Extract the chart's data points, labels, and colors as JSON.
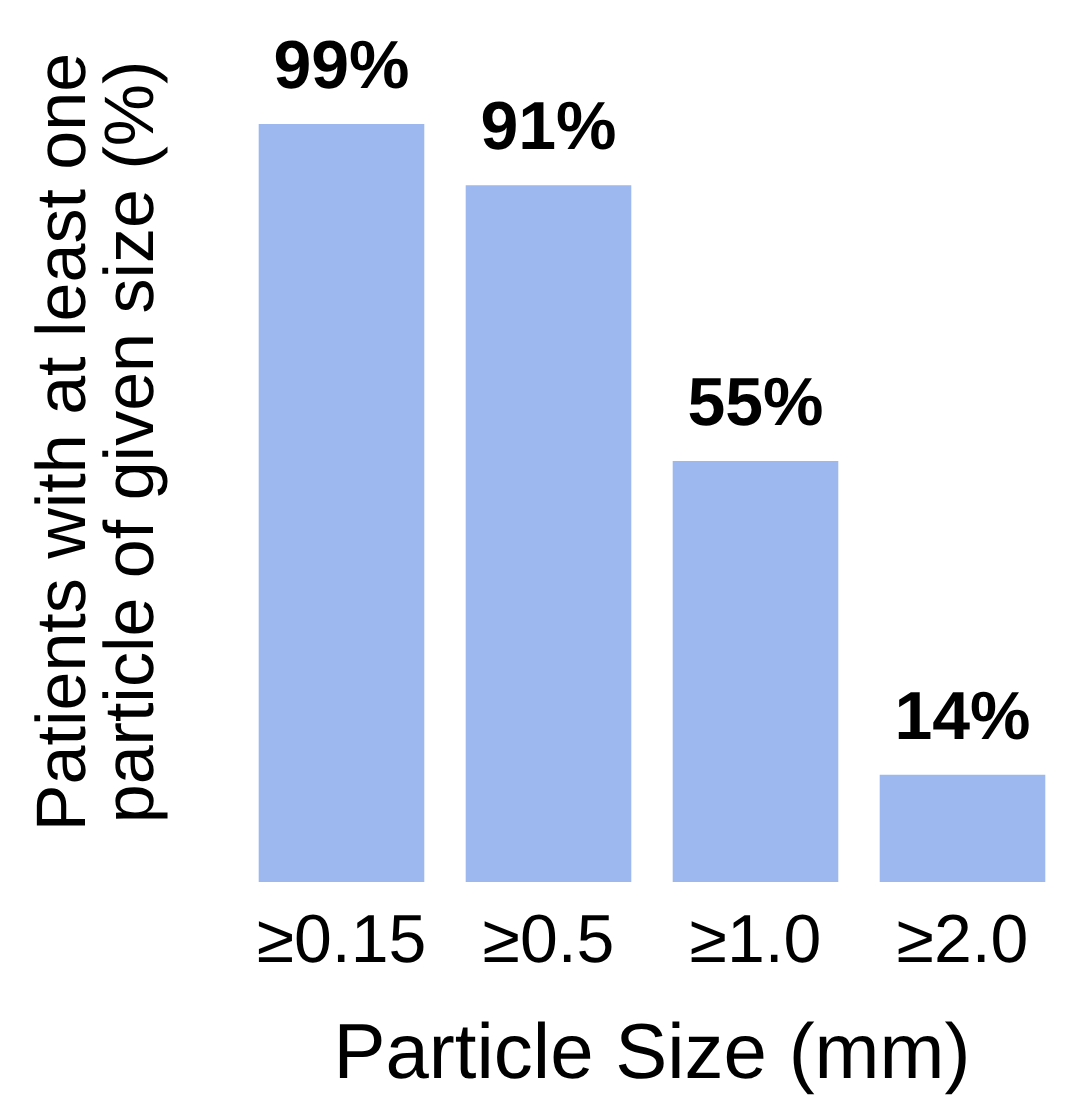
{
  "chart_data": {
    "type": "bar",
    "xlabel": "Particle Size (mm)",
    "ylabel": "Patients with at least one\nparticle of given size (%)",
    "categories": [
      "≥0.15",
      "≥0.5",
      "≥1.0",
      "≥2.0"
    ],
    "values": [
      99,
      91,
      55,
      14
    ],
    "color": "#9db8ef",
    "value_labels": [
      "99%",
      "91%",
      "55%",
      "14%"
    ]
  }
}
